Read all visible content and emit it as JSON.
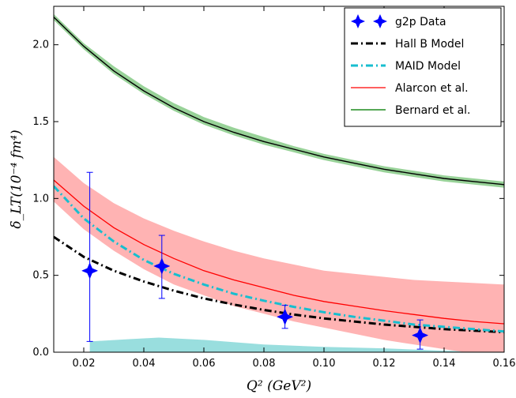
{
  "chart_data": {
    "type": "line",
    "xlabel": "Q² (GeV²)",
    "ylabel": "δ_LT(10⁻⁴ fm⁴)",
    "xlim": [
      0.01,
      0.16
    ],
    "ylim": [
      0.0,
      2.25
    ],
    "x_ticks": [
      "0.02",
      "0.04",
      "0.06",
      "0.08",
      "0.10",
      "0.12",
      "0.14",
      "0.16"
    ],
    "y_ticks": [
      "0.0",
      "0.5",
      "1.0",
      "1.5",
      "2.0"
    ],
    "legend_position": "top-right",
    "colors": {
      "data": "#0000ff",
      "hallb": "#000000",
      "maid": "#17becf",
      "alarcon": "#ff0000",
      "alarcon_band": "#ff8080",
      "bernard": "#1f8c1f",
      "bernard_band": "#6cbf6c",
      "cyan_band": "#7fd6d6"
    },
    "series": [
      {
        "name": "g2p Data",
        "kind": "points",
        "x": [
          0.022,
          0.046,
          0.087,
          0.132
        ],
        "y": [
          0.53,
          0.56,
          0.23,
          0.11
        ],
        "yerr_low": [
          0.46,
          0.21,
          0.075,
          0.09
        ],
        "yerr_high": [
          0.64,
          0.2,
          0.075,
          0.1
        ]
      },
      {
        "name": "Hall B Model",
        "kind": "line",
        "x": [
          0.01,
          0.02,
          0.03,
          0.04,
          0.05,
          0.06,
          0.07,
          0.08,
          0.09,
          0.1,
          0.11,
          0.12,
          0.13,
          0.14,
          0.15,
          0.16
        ],
        "y": [
          0.75,
          0.62,
          0.53,
          0.46,
          0.4,
          0.35,
          0.31,
          0.275,
          0.245,
          0.22,
          0.2,
          0.18,
          0.165,
          0.15,
          0.14,
          0.13
        ]
      },
      {
        "name": "MAID Model",
        "kind": "line",
        "x": [
          0.01,
          0.02,
          0.03,
          0.04,
          0.05,
          0.06,
          0.07,
          0.08,
          0.09,
          0.1,
          0.11,
          0.12,
          0.13,
          0.14,
          0.15,
          0.16
        ],
        "y": [
          1.08,
          0.87,
          0.72,
          0.6,
          0.51,
          0.44,
          0.38,
          0.335,
          0.295,
          0.26,
          0.23,
          0.205,
          0.18,
          0.165,
          0.15,
          0.135
        ]
      },
      {
        "name": "Alarcon et al.",
        "kind": "line",
        "x": [
          0.01,
          0.02,
          0.03,
          0.04,
          0.05,
          0.06,
          0.07,
          0.08,
          0.09,
          0.1,
          0.11,
          0.12,
          0.13,
          0.14,
          0.15,
          0.16
        ],
        "y": [
          1.12,
          0.95,
          0.81,
          0.7,
          0.61,
          0.53,
          0.47,
          0.42,
          0.37,
          0.33,
          0.3,
          0.27,
          0.245,
          0.22,
          0.2,
          0.185
        ],
        "band_low": [
          0.98,
          0.8,
          0.66,
          0.54,
          0.44,
          0.37,
          0.3,
          0.25,
          0.2,
          0.16,
          0.12,
          0.08,
          0.05,
          0.02,
          -0.01,
          -0.03
        ],
        "band_high": [
          1.27,
          1.1,
          0.97,
          0.87,
          0.79,
          0.72,
          0.66,
          0.61,
          0.57,
          0.53,
          0.51,
          0.49,
          0.47,
          0.46,
          0.45,
          0.44
        ]
      },
      {
        "name": "Bernard et al.",
        "kind": "line",
        "x": [
          0.01,
          0.02,
          0.03,
          0.04,
          0.05,
          0.06,
          0.07,
          0.08,
          0.09,
          0.1,
          0.11,
          0.12,
          0.13,
          0.14,
          0.15,
          0.16
        ],
        "y": [
          2.18,
          1.99,
          1.83,
          1.7,
          1.59,
          1.5,
          1.43,
          1.37,
          1.32,
          1.27,
          1.23,
          1.19,
          1.16,
          1.13,
          1.11,
          1.09
        ],
        "band_low": [
          2.16,
          1.97,
          1.81,
          1.68,
          1.57,
          1.48,
          1.41,
          1.35,
          1.3,
          1.25,
          1.21,
          1.17,
          1.14,
          1.11,
          1.09,
          1.07
        ],
        "band_high": [
          2.2,
          2.01,
          1.86,
          1.73,
          1.62,
          1.53,
          1.46,
          1.4,
          1.34,
          1.29,
          1.25,
          1.21,
          1.18,
          1.15,
          1.13,
          1.11
        ]
      }
    ],
    "extra_band": {
      "x": [
        0.022,
        0.035,
        0.045,
        0.06,
        0.08,
        0.1,
        0.12,
        0.14,
        0.16
      ],
      "low": [
        0,
        0,
        0,
        0,
        0,
        0,
        0,
        0,
        0
      ],
      "high": [
        0.07,
        0.085,
        0.095,
        0.08,
        0.05,
        0.035,
        0.025,
        0.01,
        0.005
      ]
    }
  }
}
